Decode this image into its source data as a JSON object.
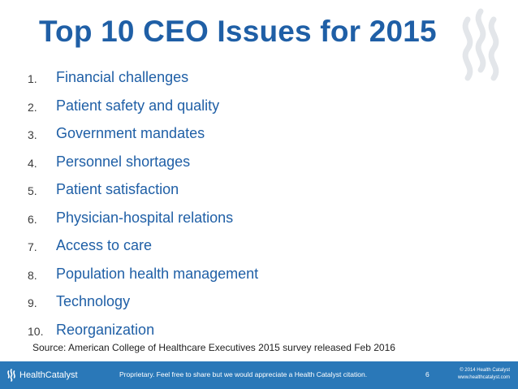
{
  "slide": {
    "title": "Top 10 CEO Issues for 2015",
    "issues": [
      {
        "num": "1.",
        "label": "Financial challenges"
      },
      {
        "num": "2.",
        "label": "Patient safety and quality"
      },
      {
        "num": "3.",
        "label": "Government mandates"
      },
      {
        "num": "4.",
        "label": "Personnel shortages"
      },
      {
        "num": "5.",
        "label": "Patient satisfaction"
      },
      {
        "num": "6.",
        "label": "Physician-hospital relations"
      },
      {
        "num": "7.",
        "label": "Access to care"
      },
      {
        "num": "8.",
        "label": "Population health management"
      },
      {
        "num": "9.",
        "label": "Technology"
      },
      {
        "num": "10.",
        "label": "Reorganization"
      }
    ],
    "source": "Source: American College of Healthcare Executives 2015 survey released Feb 2016"
  },
  "footer": {
    "logo_text": "HealthCatalyst",
    "proprietary_notice": "Proprietary. Feel free to share but we would appreciate a Health Catalyst citation.",
    "page_number": "6",
    "copyright": "© 2014 Health Catalyst",
    "website": "www.healthcatalyst.com"
  },
  "colors": {
    "title": "#1f5fa6",
    "footer_bar": "#2a78b8",
    "watermark": "#e3e6ea"
  },
  "icons": {
    "watermark": "flame-icon",
    "logo": "flame-logo-icon"
  }
}
